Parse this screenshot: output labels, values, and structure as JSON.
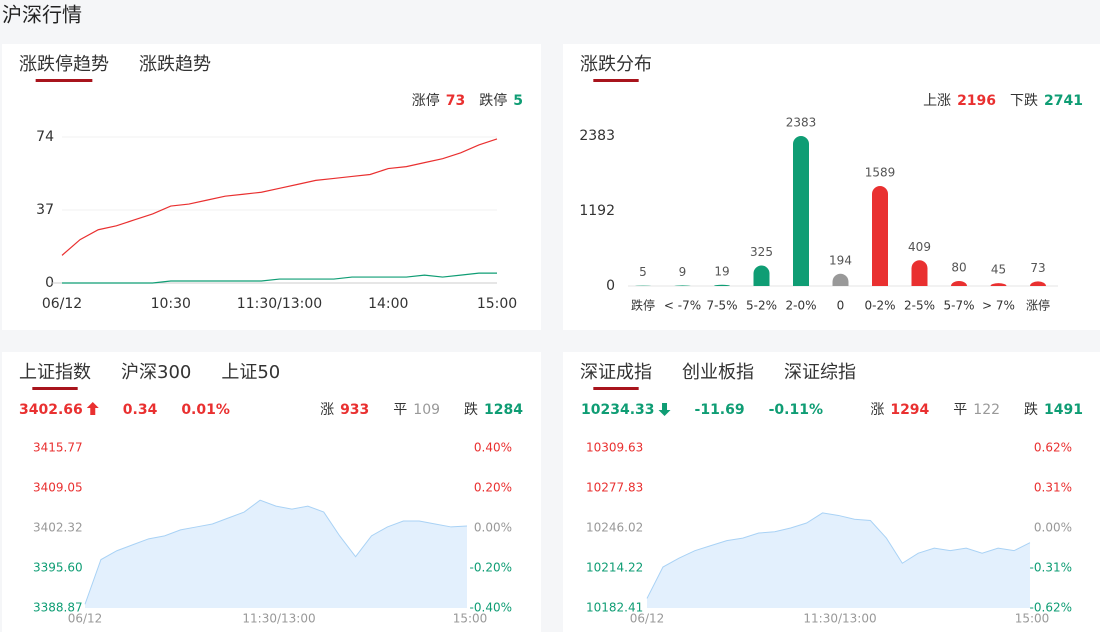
{
  "header": {
    "title": "沪深行情"
  },
  "colors": {
    "up": "#e93030",
    "down": "#0f9d74",
    "flat": "#999999"
  },
  "limit_panel": {
    "tabs": [
      "涨跌停趋势",
      "涨跌趋势"
    ],
    "chart_data": {
      "type": "line",
      "x": [
        0,
        10,
        20,
        30,
        40,
        50,
        60,
        70,
        80,
        90,
        100,
        110,
        120,
        130,
        140,
        150,
        160,
        170,
        180,
        190,
        200,
        210,
        220,
        230,
        240
      ],
      "xlim": [
        0,
        240
      ],
      "xticks": [
        {
          "value": 0,
          "label": "06/12"
        },
        {
          "value": 60,
          "label": "10:30"
        },
        {
          "value": 120,
          "label": "11:30/13:00"
        },
        {
          "value": 180,
          "label": "14:00"
        },
        {
          "value": 240,
          "label": "15:00"
        }
      ],
      "ylim": [
        0,
        74
      ],
      "yticks": [
        0,
        37,
        74
      ],
      "grid": true,
      "series": [
        {
          "name": "涨停",
          "current": 73,
          "color": "#e93030",
          "values": [
            14,
            22,
            27,
            29,
            32,
            35,
            39,
            40,
            42,
            44,
            45,
            46,
            48,
            50,
            52,
            53,
            54,
            55,
            58,
            59,
            61,
            63,
            66,
            70,
            73
          ]
        },
        {
          "name": "跌停",
          "current": 5,
          "color": "#0f9d74",
          "values": [
            0,
            0,
            0,
            0,
            0,
            0,
            1,
            1,
            1,
            1,
            1,
            1,
            2,
            2,
            2,
            2,
            3,
            3,
            3,
            3,
            4,
            3,
            4,
            5,
            5
          ]
        }
      ]
    }
  },
  "dist_panel": {
    "tabs": [
      "涨跌分布"
    ],
    "summary": [
      {
        "label": "上涨",
        "value": 2196,
        "color": "#e93030"
      },
      {
        "label": "下跌",
        "value": 2741,
        "color": "#0f9d74"
      }
    ],
    "chart_data": {
      "type": "bar",
      "categories": [
        "跌停",
        "< -7%",
        "7-5%",
        "5-2%",
        "2-0%",
        "0",
        "0-2%",
        "2-5%",
        "5-7%",
        "> 7%",
        "涨停"
      ],
      "values": [
        5,
        9,
        19,
        325,
        2383,
        194,
        1589,
        409,
        80,
        45,
        73
      ],
      "colors": [
        "#0f9d74",
        "#0f9d74",
        "#0f9d74",
        "#0f9d74",
        "#0f9d74",
        "#999999",
        "#e93030",
        "#e93030",
        "#e93030",
        "#e93030",
        "#e93030"
      ],
      "ylim": [
        0,
        2383
      ],
      "yticks": [
        0,
        1192,
        2383
      ]
    }
  },
  "index_panels": [
    {
      "tabs": [
        "上证指数",
        "沪深300",
        "上证50"
      ],
      "price": 3402.66,
      "change": 0.34,
      "change_pct": {
        "value": 0.01,
        "label": "0.01%"
      },
      "counts": [
        {
          "label": "涨",
          "value": 933
        },
        {
          "label": "平",
          "value": 109
        },
        {
          "label": "跌",
          "value": 1284
        }
      ],
      "chart_data": {
        "type": "area",
        "color": "#a9d2f5",
        "fill": "#e3f0fd",
        "x": [
          0,
          10,
          20,
          30,
          40,
          50,
          60,
          70,
          80,
          90,
          100,
          110,
          120,
          130,
          140,
          150,
          160,
          170,
          180,
          190,
          200,
          210,
          220,
          230,
          240
        ],
        "xlim": [
          0,
          240
        ],
        "xticks": [
          {
            "value": 0,
            "label": "06/12"
          },
          {
            "value": 120,
            "label": "11:30/13:00"
          },
          {
            "value": 240,
            "label": "15:00"
          }
        ],
        "ylim": [
          3388.87,
          3415.77
        ],
        "yticks": [
          {
            "value": 3388.87,
            "label": "3388.87"
          },
          {
            "value": 3395.6,
            "label": "3395.60"
          },
          {
            "value": 3402.32,
            "label": "3402.32"
          },
          {
            "value": 3409.05,
            "label": "3409.05"
          },
          {
            "value": 3415.77,
            "label": "3415.77"
          }
        ],
        "y2lim": [
          -0.4,
          0.4
        ],
        "y2ticks": [
          {
            "value": -0.4,
            "label": "-0.40%"
          },
          {
            "value": -0.2,
            "label": "-0.20%"
          },
          {
            "value": 0,
            "label": "0.00%"
          },
          {
            "value": 0.2,
            "label": "0.20%"
          },
          {
            "value": 0.4,
            "label": "0.40%"
          }
        ],
        "values": [
          3389.5,
          3397,
          3398.5,
          3399.5,
          3400.5,
          3401,
          3402,
          3402.5,
          3403,
          3404,
          3405,
          3407,
          3406,
          3405.5,
          3406,
          3405,
          3401,
          3397.5,
          3401,
          3402.5,
          3403.5,
          3403.5,
          3403,
          3402.5,
          3402.66
        ]
      }
    },
    {
      "tabs": [
        "深证成指",
        "创业板指",
        "深证综指"
      ],
      "price": 10234.33,
      "change": -11.69,
      "change_pct": {
        "value": -0.11,
        "label": "-0.11%"
      },
      "counts": [
        {
          "label": "涨",
          "value": 1294
        },
        {
          "label": "平",
          "value": 122
        },
        {
          "label": "跌",
          "value": 1491
        }
      ],
      "chart_data": {
        "type": "area",
        "color": "#a9d2f5",
        "fill": "#e3f0fd",
        "x": [
          0,
          10,
          20,
          30,
          40,
          50,
          60,
          70,
          80,
          90,
          100,
          110,
          120,
          130,
          140,
          150,
          160,
          170,
          180,
          190,
          200,
          210,
          220,
          230,
          240
        ],
        "xlim": [
          0,
          240
        ],
        "xticks": [
          {
            "value": 0,
            "label": "06/12"
          },
          {
            "value": 120,
            "label": "11:30/13:00"
          },
          {
            "value": 240,
            "label": "15:00"
          }
        ],
        "ylim": [
          10182.41,
          10309.63
        ],
        "yticks": [
          {
            "value": 10182.41,
            "label": "10182.41"
          },
          {
            "value": 10214.22,
            "label": "10214.22"
          },
          {
            "value": 10246.02,
            "label": "10246.02"
          },
          {
            "value": 10277.83,
            "label": "10277.83"
          },
          {
            "value": 10309.63,
            "label": "10309.63"
          }
        ],
        "y2lim": [
          -0.62,
          0.62
        ],
        "y2ticks": [
          {
            "value": -0.62,
            "label": "-0.62%"
          },
          {
            "value": -0.31,
            "label": "-0.31%"
          },
          {
            "value": 0,
            "label": "0.00%"
          },
          {
            "value": 0.31,
            "label": "0.31%"
          },
          {
            "value": 0.62,
            "label": "0.62%"
          }
        ],
        "values": [
          10190,
          10215,
          10222,
          10228,
          10232,
          10236,
          10238,
          10242,
          10243,
          10246,
          10250,
          10258,
          10256,
          10253,
          10252,
          10238,
          10218,
          10226,
          10230,
          10228,
          10230,
          10226,
          10230,
          10228,
          10234.33
        ]
      }
    }
  ]
}
